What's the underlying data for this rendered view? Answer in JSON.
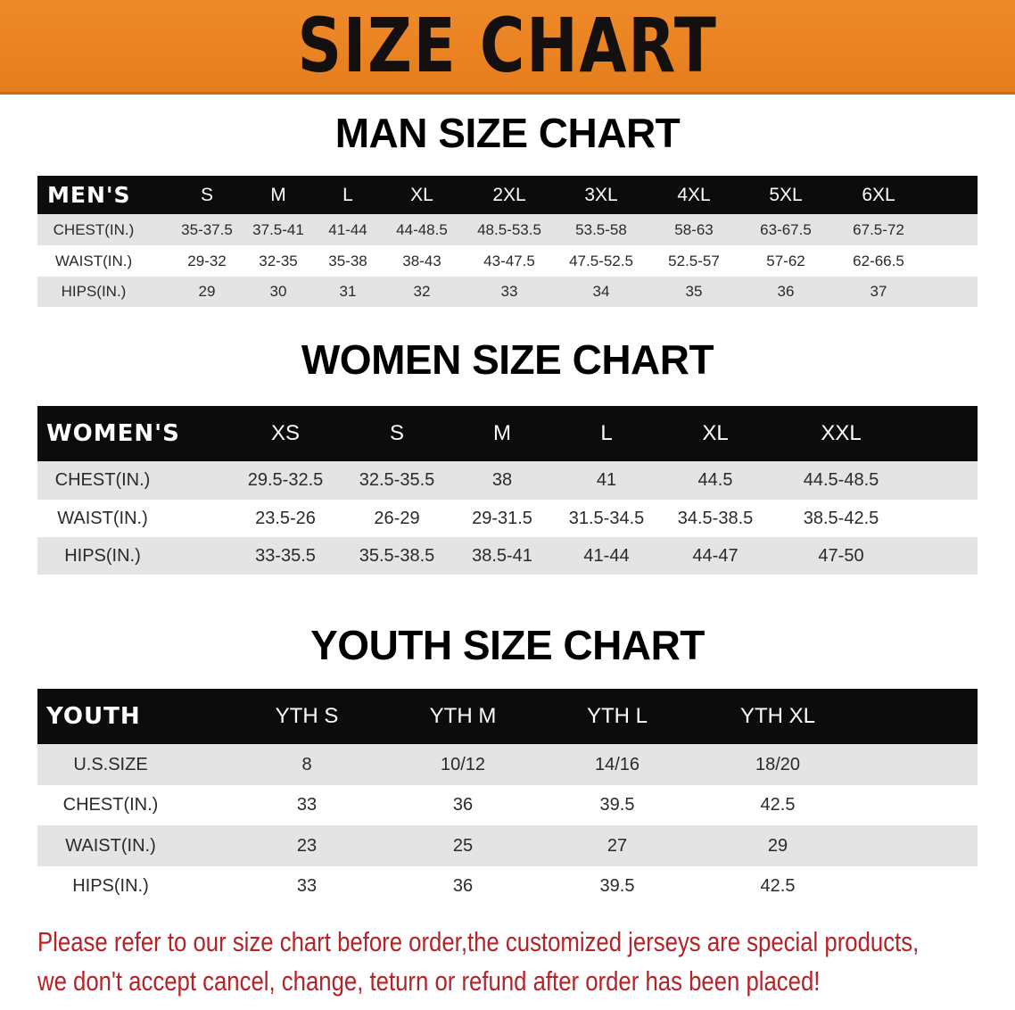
{
  "banner": {
    "title": "SIZE CHART",
    "color": "#e8801f"
  },
  "men": {
    "title": "MAN SIZE CHART",
    "header": [
      "MEN'S",
      "S",
      "M",
      "L",
      "XL",
      "2XL",
      "3XL",
      "4XL",
      "5XL",
      "6XL"
    ],
    "rows": [
      [
        "CHEST(IN.)",
        "35-37.5",
        "37.5-41",
        "41-44",
        "44-48.5",
        "48.5-53.5",
        "53.5-58",
        "58-63",
        "63-67.5",
        "67.5-72"
      ],
      [
        "WAIST(IN.)",
        "29-32",
        "32-35",
        "35-38",
        "38-43",
        "43-47.5",
        "47.5-52.5",
        "52.5-57",
        "57-62",
        "62-66.5"
      ],
      [
        "HIPS(IN.)",
        "29",
        "30",
        "31",
        "32",
        "33",
        "34",
        "35",
        "36",
        "37"
      ]
    ]
  },
  "women": {
    "title": "WOMEN SIZE CHART",
    "header": [
      "WOMEN'S",
      "XS",
      "S",
      "M",
      "L",
      "XL",
      "XXL"
    ],
    "rows": [
      [
        "CHEST(IN.)",
        "29.5-32.5",
        "32.5-35.5",
        "38",
        "41",
        "44.5",
        "44.5-48.5"
      ],
      [
        "WAIST(IN.)",
        "23.5-26",
        "26-29",
        "29-31.5",
        "31.5-34.5",
        "34.5-38.5",
        "38.5-42.5"
      ],
      [
        "HIPS(IN.)",
        "33-35.5",
        "35.5-38.5",
        "38.5-41",
        "41-44",
        "44-47",
        "47-50"
      ]
    ]
  },
  "youth": {
    "title": "YOUTH SIZE CHART",
    "header": [
      "YOUTH",
      "YTH S",
      "YTH M",
      "YTH L",
      "YTH XL"
    ],
    "rows": [
      [
        "U.S.SIZE",
        "8",
        "10/12",
        "14/16",
        "18/20"
      ],
      [
        "CHEST(IN.)",
        "33",
        "36",
        "39.5",
        "42.5"
      ],
      [
        "WAIST(IN.)",
        "23",
        "25",
        "27",
        "29"
      ],
      [
        "HIPS(IN.)",
        "33",
        "36",
        "39.5",
        "42.5"
      ]
    ]
  },
  "notice": {
    "line1": "Please refer to our size chart before order,the customized jerseys are special products,",
    "line2": "we don't accept cancel, change, teturn or refund after order has been placed!",
    "color": "#b52228"
  }
}
